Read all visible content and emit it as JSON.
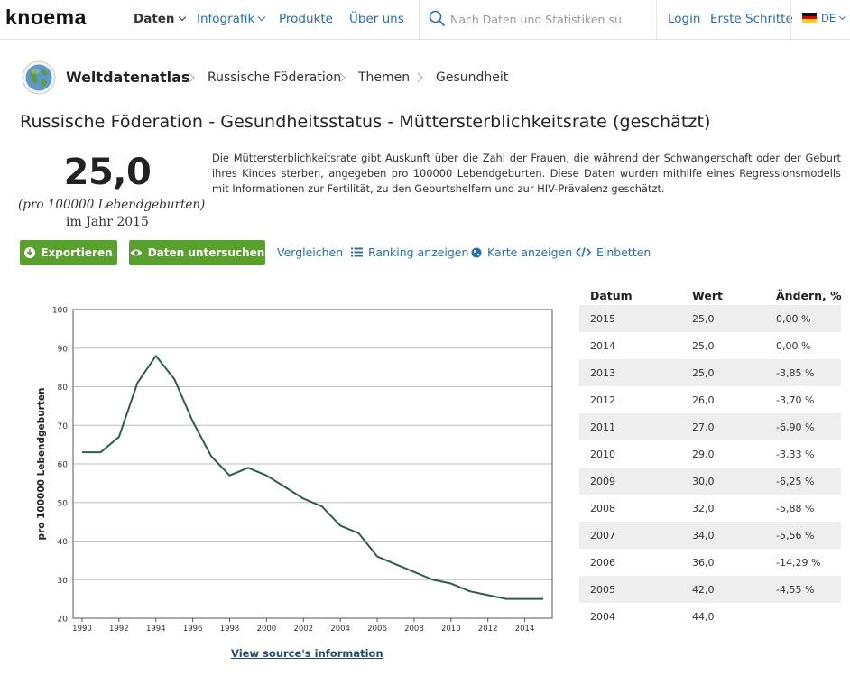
{
  "nav": {
    "logo": "knoema",
    "items": [
      {
        "label": "Daten",
        "dropdown": true,
        "active": true
      },
      {
        "label": "Infografik",
        "dropdown": true,
        "active": false
      },
      {
        "label": "Produkte",
        "dropdown": false,
        "active": false
      },
      {
        "label": "Über uns",
        "dropdown": false,
        "active": false
      }
    ],
    "search_placeholder": "Nach Daten und Statistiken su",
    "login": "Login",
    "first_steps": "Erste Schritte",
    "language": "DE"
  },
  "breadcrumb": {
    "root": "Weltdatenatlas",
    "items": [
      "Russische Föderation",
      "Themen",
      "Gesundheit"
    ]
  },
  "page_title": "Russische Föderation - Gesundheitsstatus - Müttersterblichkeitsrate (geschätzt)",
  "kpi": {
    "value": "25,0",
    "unit": "(pro 100000 Lebendgeburten)",
    "year": "im Jahr 2015"
  },
  "description": "Die Müttersterblichkeitsrate gibt Auskunft über die Zahl der Frauen, die während der Schwangerschaft oder der Geburt ihres Kindes sterben, angegeben pro 100000 Lebendgeburten. Diese Daten wurden mithilfe eines Regressionsmodells mit Informationen zur Fertilität, zu den Geburtshelfern und zur HIV-Prävalenz geschätzt.",
  "actions": {
    "export": "Exportieren",
    "explore": "Daten untersuchen",
    "compare": "Vergleichen",
    "ranking": "Ranking anzeigen",
    "map": "Karte anzeigen",
    "embed": "Einbetten"
  },
  "chart_data": {
    "type": "line",
    "title": "",
    "xlabel": "",
    "ylabel": "pro 100000 Lebendgeburten",
    "ylim": [
      20,
      100
    ],
    "xlim": [
      1990,
      2015
    ],
    "grid": true,
    "legend": "none",
    "line_color": "#2f5e46",
    "yticks": [
      20,
      30,
      40,
      50,
      60,
      70,
      80,
      90,
      100
    ],
    "xticks": [
      1990,
      1992,
      1994,
      1996,
      1998,
      2000,
      2002,
      2004,
      2006,
      2008,
      2010,
      2012,
      2014
    ],
    "x": [
      1990,
      1991,
      1992,
      1993,
      1994,
      1995,
      1996,
      1997,
      1998,
      1999,
      2000,
      2001,
      2002,
      2003,
      2004,
      2005,
      2006,
      2007,
      2008,
      2009,
      2010,
      2011,
      2012,
      2013,
      2014,
      2015
    ],
    "series": [
      {
        "values": [
          63,
          63,
          67,
          81,
          88,
          82,
          71,
          62,
          57,
          59,
          57,
          54,
          51,
          49,
          44,
          42,
          36,
          34,
          32,
          30,
          29,
          27,
          26,
          25,
          25,
          25
        ]
      }
    ]
  },
  "source_link": "View source's information",
  "table": {
    "headers": [
      "Datum",
      "Wert",
      "Ändern, %"
    ],
    "rows": [
      [
        "2015",
        "25,0",
        "0,00 %"
      ],
      [
        "2014",
        "25,0",
        "0,00 %"
      ],
      [
        "2013",
        "25,0",
        "-3,85 %"
      ],
      [
        "2012",
        "26,0",
        "-3,70 %"
      ],
      [
        "2011",
        "27,0",
        "-6,90 %"
      ],
      [
        "2010",
        "29,0",
        "-3,33 %"
      ],
      [
        "2009",
        "30,0",
        "-6,25 %"
      ],
      [
        "2008",
        "32,0",
        "-5,88 %"
      ],
      [
        "2007",
        "34,0",
        "-5,56 %"
      ],
      [
        "2006",
        "36,0",
        "-14,29 %"
      ],
      [
        "2005",
        "42,0",
        "-4,55 %"
      ],
      [
        "2004",
        "44,0",
        ""
      ]
    ]
  }
}
